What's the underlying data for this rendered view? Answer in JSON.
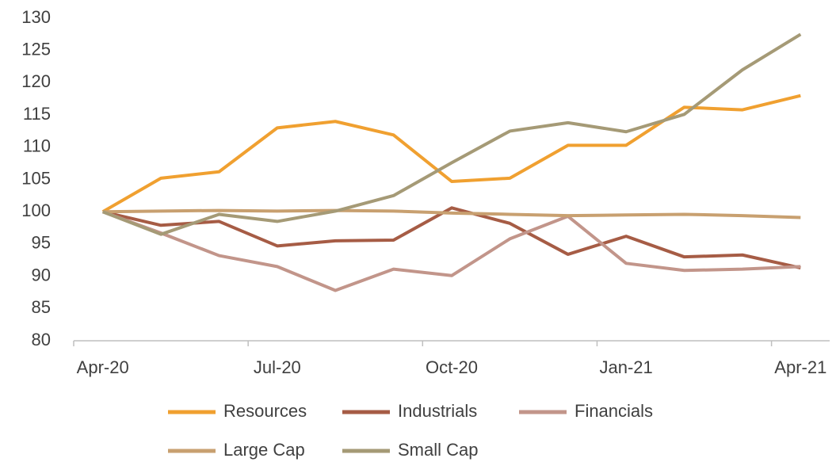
{
  "chart_data": {
    "type": "line",
    "categories": [
      "Apr-20",
      null,
      null,
      "Jul-20",
      null,
      null,
      "Oct-20",
      null,
      null,
      "Jan-21",
      null,
      null,
      "Apr-21"
    ],
    "series": [
      {
        "name": "Resources",
        "color": "#f0a030",
        "values": [
          100,
          105.2,
          106.2,
          113,
          114,
          111.9,
          104.7,
          105.2,
          110.3,
          110.3,
          116.2,
          115.8,
          118
        ]
      },
      {
        "name": "Industrials",
        "color": "#a65c45",
        "values": [
          100,
          97.9,
          98.5,
          94.7,
          95.5,
          95.6,
          100.6,
          98.2,
          93.4,
          96.2,
          93,
          93.3,
          91.3
        ]
      },
      {
        "name": "Financials",
        "color": "#c2958a",
        "values": [
          100,
          96.7,
          93.2,
          91.5,
          87.8,
          91.1,
          90.1,
          95.8,
          99.3,
          92,
          90.9,
          91.1,
          91.5
        ]
      },
      {
        "name": "Large Cap",
        "color": "#c8a070",
        "values": [
          100,
          100.1,
          100.2,
          100.1,
          100.2,
          100.1,
          99.8,
          99.6,
          99.4,
          99.5,
          99.6,
          99.4,
          99.1
        ]
      },
      {
        "name": "Small Cap",
        "color": "#a59a76",
        "values": [
          100,
          96.5,
          99.6,
          98.5,
          100.1,
          102.5,
          107.6,
          112.5,
          113.8,
          112.4,
          115.1,
          122,
          127.5
        ]
      }
    ],
    "ylim": [
      80,
      130
    ],
    "yticks": [
      80,
      85,
      90,
      95,
      100,
      105,
      110,
      115,
      120,
      125,
      130
    ],
    "grid": false,
    "legend": "bottom"
  }
}
